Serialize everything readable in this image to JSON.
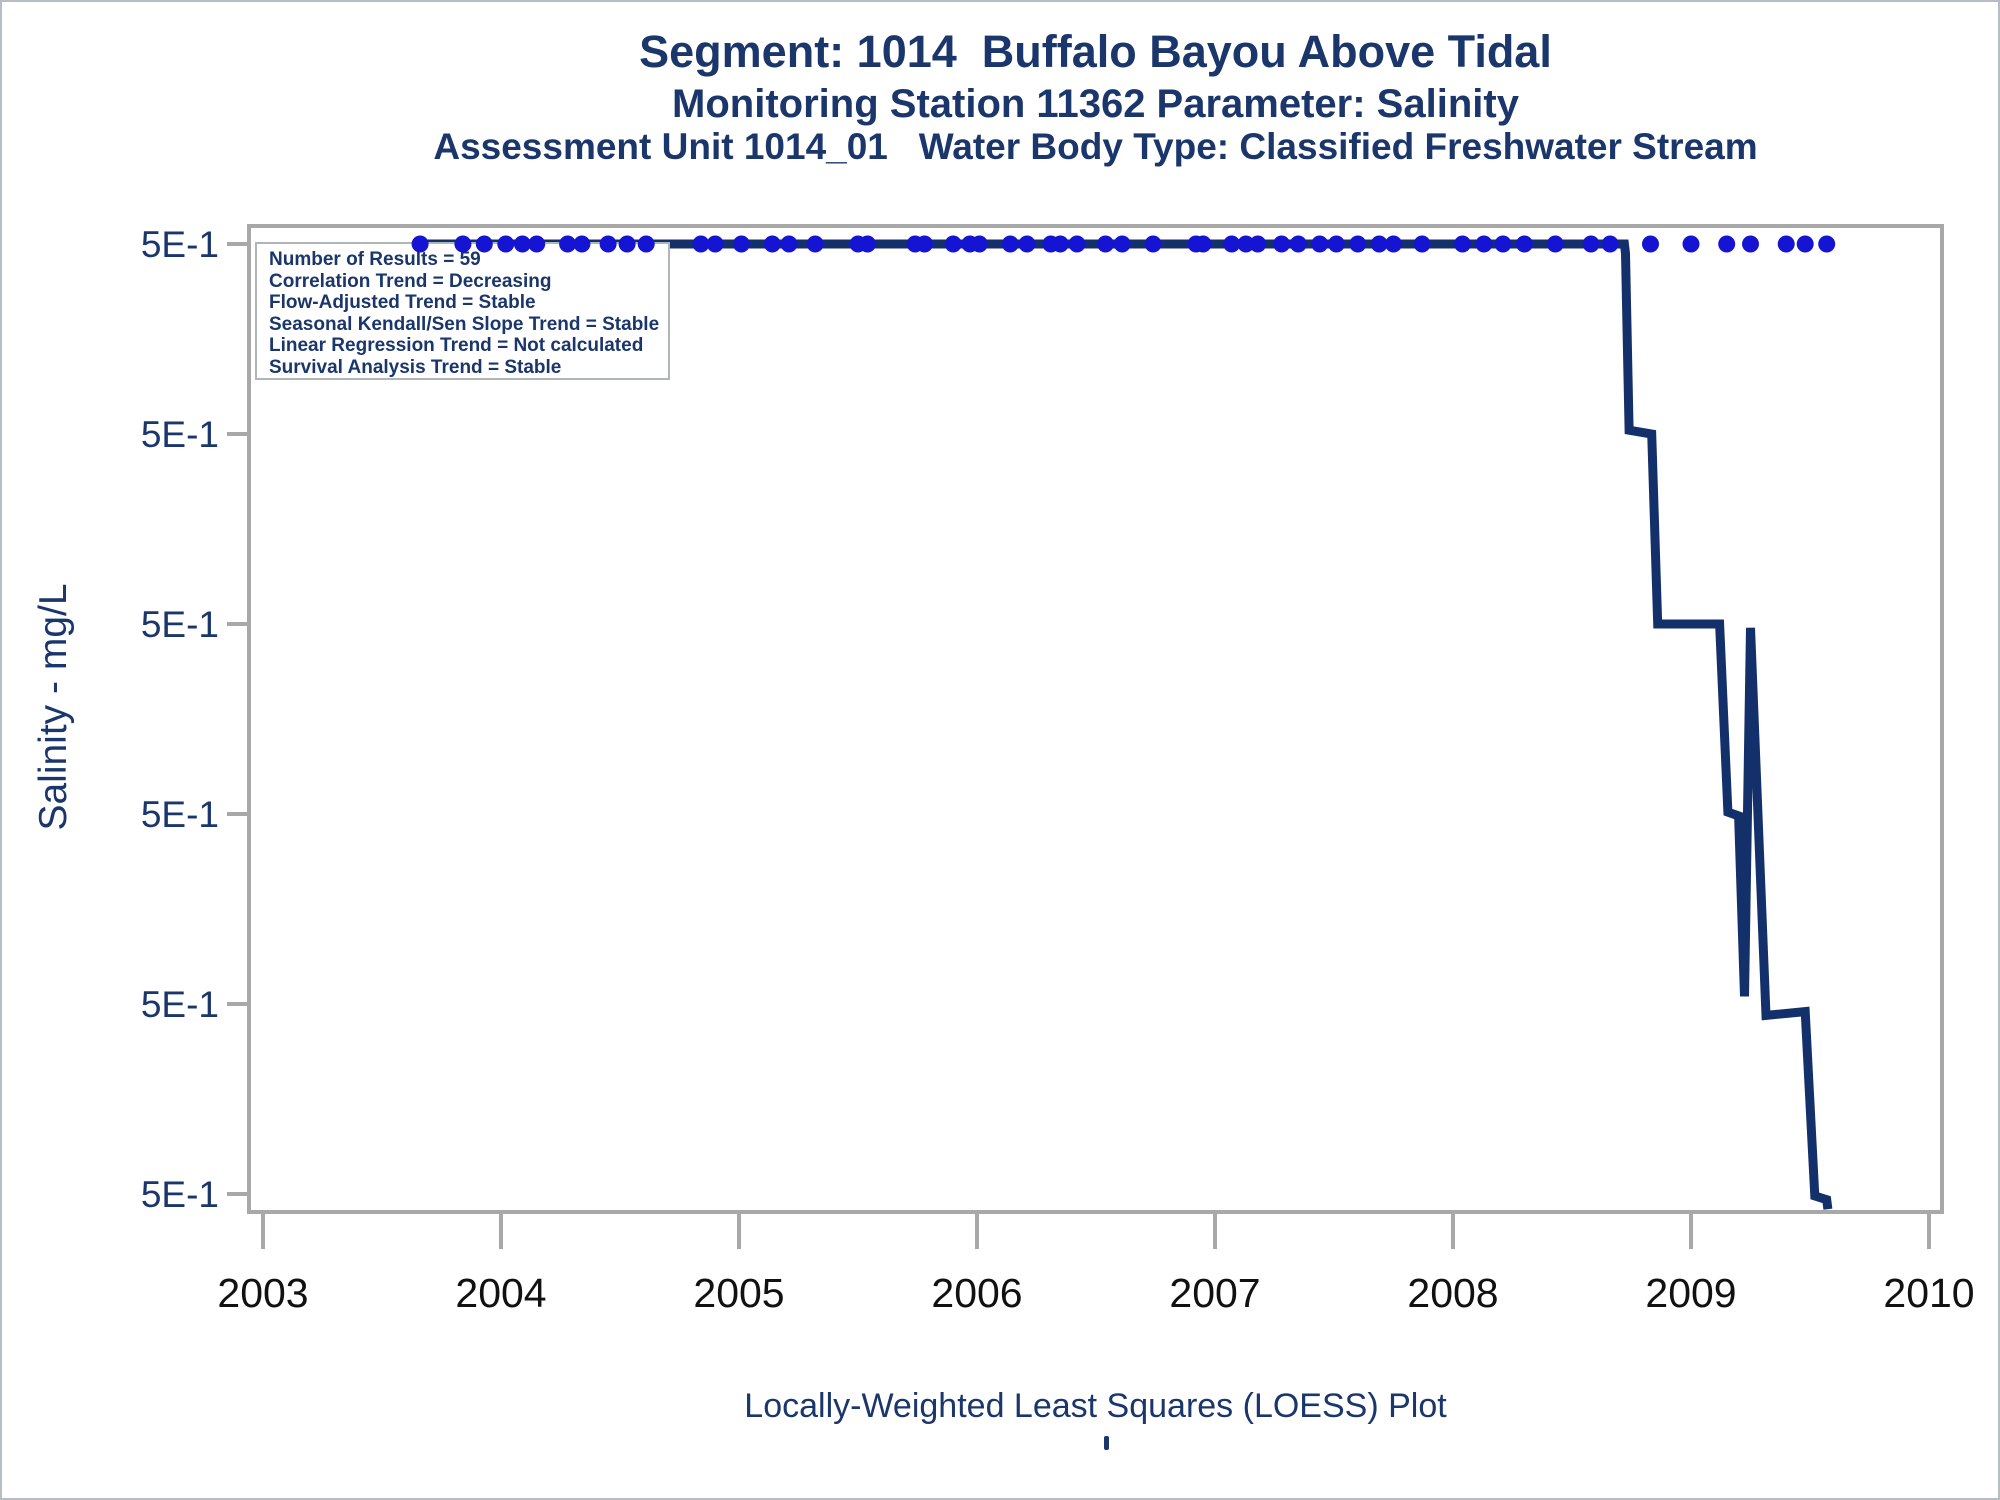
{
  "titles": {
    "line1": "Segment: 1014  Buffalo Bayou Above Tidal",
    "line2": "Monitoring Station 11362 Parameter: Salinity",
    "line3": "Assessment Unit 1014_01   Water Body Type: Classified Freshwater Stream"
  },
  "y_axis": {
    "label": "Salinity - mg/L",
    "tick_labels": [
      "5E-1",
      "5E-1",
      "5E-1",
      "5E-1",
      "5E-1",
      "5E-1"
    ]
  },
  "x_axis": {
    "tick_labels": [
      "2003",
      "2004",
      "2005",
      "2006",
      "2007",
      "2008",
      "2009",
      "2010"
    ]
  },
  "legend": {
    "lines": [
      "Number of Results = 59",
      "Correlation Trend = Decreasing",
      "Flow-Adjusted Trend = Stable",
      "Seasonal Kendall/Sen Slope Trend = Stable",
      "Linear Regression Trend = Not calculated",
      "Survival Analysis Trend = Stable"
    ]
  },
  "footer": {
    "caption": "Locally-Weighted Least Squares (LOESS) Plot"
  },
  "colors": {
    "navy_text": "#1a366b",
    "loess_line": "#14306a",
    "dot": "#1414d2",
    "frame_gray": "#a8a8a8",
    "x_label_black": "#111111"
  },
  "chart_data": {
    "type": "scatter",
    "title": "Segment: 1014  Buffalo Bayou Above Tidal",
    "subtitle": "Monitoring Station 11362 Parameter: Salinity | Assessment Unit 1014_01  Water Body Type: Classified Freshwater Stream",
    "xlabel": "",
    "ylabel": "Salinity - mg/L",
    "x_range": [
      2003,
      2010
    ],
    "grid": "off",
    "legend_position": "top-left-inset",
    "number_of_results": 59,
    "y_axis_note": "Six evenly spaced ticks, every tick labeled 5E-1 (0.5 mg/L); nearly all observations censored at 5E-1",
    "points_y_value": "5E-1",
    "points_x_years": [
      2003.66,
      2003.84,
      2003.93,
      2004.02,
      2004.09,
      2004.15,
      2004.28,
      2004.34,
      2004.45,
      2004.53,
      2004.61,
      2004.84,
      2004.9,
      2005.01,
      2005.14,
      2005.21,
      2005.32,
      2005.5,
      2005.54,
      2005.74,
      2005.78,
      2005.9,
      2005.97,
      2006.01,
      2006.14,
      2006.21,
      2006.31,
      2006.35,
      2006.42,
      2006.54,
      2006.61,
      2006.74,
      2006.92,
      2006.95,
      2007.07,
      2007.13,
      2007.18,
      2007.28,
      2007.35,
      2007.44,
      2007.51,
      2007.6,
      2007.69,
      2007.75,
      2007.87,
      2008.04,
      2008.13,
      2008.21,
      2008.3,
      2008.43,
      2008.58,
      2008.66,
      2008.83,
      2009.0,
      2009.15,
      2009.25,
      2009.4,
      2009.48,
      2009.57
    ],
    "loess_line_year_tickunit": [
      [
        2003.664,
        0
      ],
      [
        2008.72,
        0
      ],
      [
        2008.725,
        0.05
      ],
      [
        2008.74,
        0.98
      ],
      [
        2008.835,
        1.0
      ],
      [
        2008.86,
        2.0
      ],
      [
        2009.12,
        2.0
      ],
      [
        2009.155,
        2.99
      ],
      [
        2009.2,
        3.01
      ],
      [
        2009.225,
        3.96
      ],
      [
        2009.25,
        2.02
      ],
      [
        2009.315,
        4.06
      ],
      [
        2009.48,
        4.04
      ],
      [
        2009.52,
        5.01
      ],
      [
        2009.57,
        5.03
      ],
      [
        2009.575,
        5.08
      ]
    ]
  }
}
